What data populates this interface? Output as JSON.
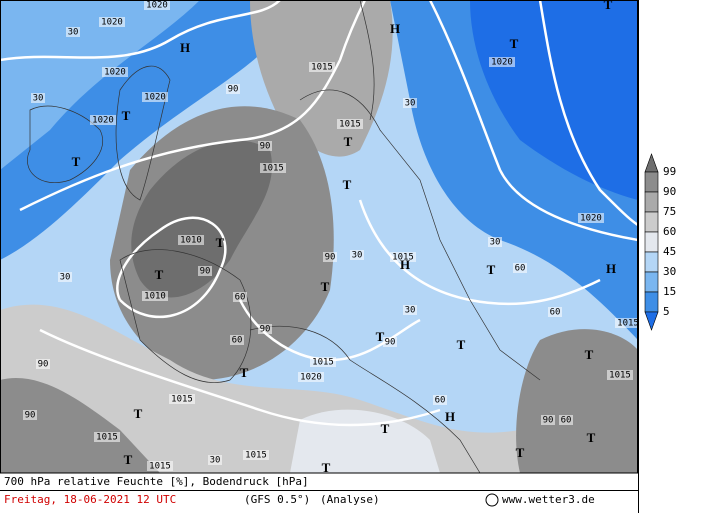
{
  "map": {
    "labels": [
      "1020",
      "1020",
      "30",
      "H",
      "1020",
      "1020",
      "30",
      "1020",
      "T",
      "T",
      "90",
      "H",
      "1015",
      "1015",
      "T",
      "T",
      "1015",
      "90",
      "T",
      "1010",
      "T",
      "1010",
      "30",
      "90",
      "60",
      "90",
      "60",
      "T",
      "90",
      "1015",
      "H",
      "30",
      "30",
      "T",
      "90",
      "T",
      "1015",
      "1020",
      "T",
      "90",
      "1015",
      "T",
      "90",
      "1015",
      "T",
      "1015",
      "30",
      "T",
      "1015",
      "T",
      "H",
      "T",
      "T",
      "T",
      "1015",
      "90",
      "60",
      "1015",
      "H",
      "T",
      "60",
      "30",
      "1020",
      "1020",
      "T",
      "T",
      "30",
      "60",
      "60"
    ],
    "legend": {
      "levels": [
        99,
        90,
        75,
        60,
        45,
        30,
        15,
        5
      ],
      "colors": [
        "#6e6e6e",
        "#8c8c8c",
        "#aaaaaa",
        "#cccccc",
        "#e4e8ee",
        "#b4d6f6",
        "#7ab6f0",
        "#3e8ee6",
        "#1e6ee6"
      ]
    }
  },
  "footer": {
    "title": "700 hPa relative Feuchte [%], Bodendruck [hPa]",
    "date": "Freitag, 18-06-2021  12 UTC",
    "model": "(GFS 0.5°)",
    "run": "(Analyse)",
    "site": "www.wetter3.de"
  }
}
